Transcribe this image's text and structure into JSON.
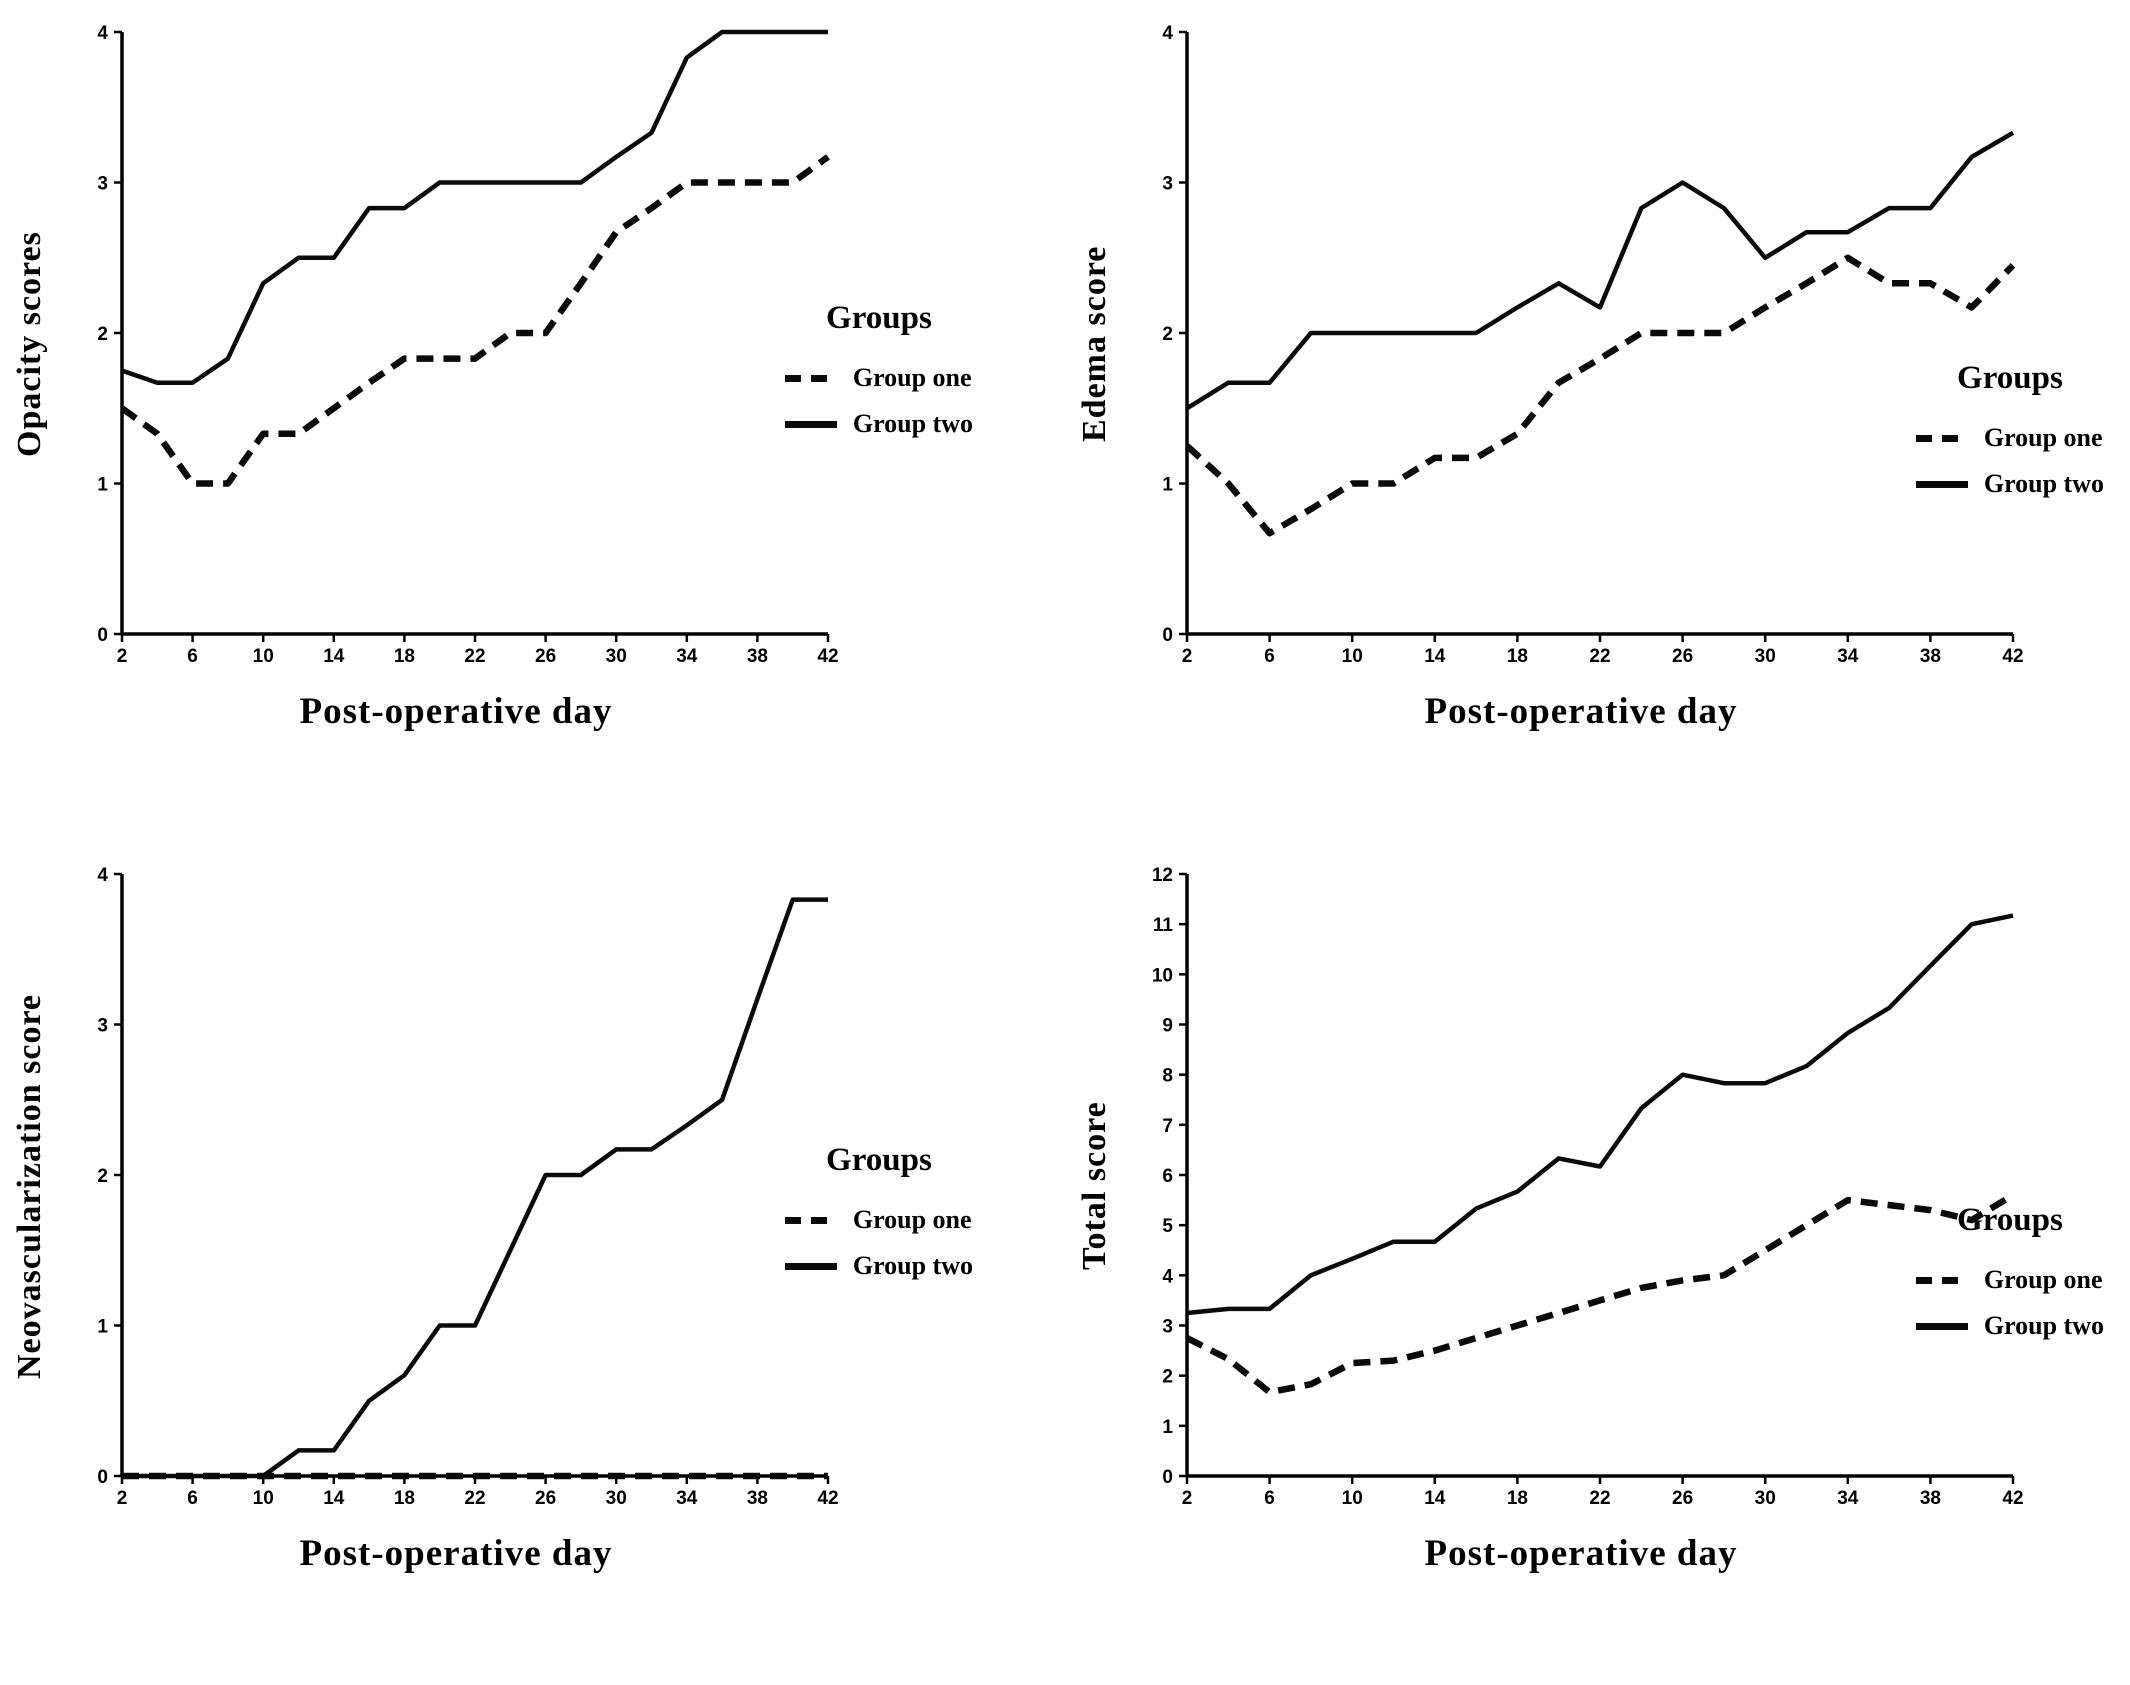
{
  "legend": {
    "title": "Groups"
  },
  "chart_data": [
    {
      "type": "line",
      "title": "",
      "ylabel": "Opacity scores",
      "xlabel": "Post-operative day",
      "legend_title": "Groups",
      "legend_position": "right-center",
      "grid": false,
      "xlim": [
        2,
        42
      ],
      "ylim": [
        0,
        4
      ],
      "xticks": [
        2,
        6,
        10,
        14,
        18,
        22,
        26,
        30,
        34,
        38,
        42
      ],
      "yticks": [
        0,
        1,
        2,
        3,
        4
      ],
      "x": [
        2,
        4,
        6,
        8,
        10,
        12,
        14,
        16,
        18,
        20,
        22,
        24,
        26,
        28,
        30,
        32,
        34,
        36,
        38,
        40,
        42
      ],
      "series": [
        {
          "name": "Group one",
          "style": "dashed",
          "values": [
            1.5,
            1.33,
            1.0,
            1.0,
            1.33,
            1.33,
            1.5,
            1.67,
            1.83,
            1.83,
            1.83,
            2.0,
            2.0,
            2.33,
            2.67,
            2.83,
            3.0,
            3.0,
            3.0,
            3.0,
            3.17
          ]
        },
        {
          "name": "Group two",
          "style": "solid",
          "values": [
            1.75,
            1.67,
            1.67,
            1.83,
            2.33,
            2.5,
            2.5,
            2.83,
            2.83,
            3.0,
            3.0,
            3.0,
            3.0,
            3.0,
            3.17,
            3.33,
            3.83,
            4.0,
            4.0,
            4.0,
            4.0
          ]
        }
      ]
    },
    {
      "type": "line",
      "title": "",
      "ylabel": "Edema score",
      "xlabel": "Post-operative day",
      "legend_title": "Groups",
      "legend_position": "right-center",
      "grid": false,
      "xlim": [
        2,
        42
      ],
      "ylim": [
        0,
        4
      ],
      "xticks": [
        2,
        6,
        10,
        14,
        18,
        22,
        26,
        30,
        34,
        38,
        42
      ],
      "yticks": [
        0,
        1,
        2,
        3,
        4
      ],
      "x": [
        2,
        4,
        6,
        8,
        10,
        12,
        14,
        16,
        18,
        20,
        22,
        24,
        26,
        28,
        30,
        32,
        34,
        36,
        38,
        40,
        42
      ],
      "series": [
        {
          "name": "Group one",
          "style": "dashed",
          "values": [
            1.25,
            1.0,
            0.67,
            0.83,
            1.0,
            1.0,
            1.17,
            1.17,
            1.33,
            1.67,
            1.83,
            2.0,
            2.0,
            2.0,
            2.17,
            2.33,
            2.5,
            2.33,
            2.33,
            2.17,
            2.45
          ]
        },
        {
          "name": "Group two",
          "style": "solid",
          "values": [
            1.5,
            1.67,
            1.67,
            2.0,
            2.0,
            2.0,
            2.0,
            2.0,
            2.17,
            2.33,
            2.17,
            2.83,
            3.0,
            2.83,
            2.5,
            2.67,
            2.67,
            2.83,
            2.83,
            3.17,
            3.33
          ]
        }
      ]
    },
    {
      "type": "line",
      "title": "",
      "ylabel": "Neovascularization score",
      "xlabel": "Post-operative day",
      "legend_title": "Groups",
      "legend_position": "right-center",
      "grid": false,
      "xlim": [
        2,
        42
      ],
      "ylim": [
        0,
        4
      ],
      "xticks": [
        2,
        6,
        10,
        14,
        18,
        22,
        26,
        30,
        34,
        38,
        42
      ],
      "yticks": [
        0,
        1,
        2,
        3,
        4
      ],
      "x": [
        2,
        4,
        6,
        8,
        10,
        12,
        14,
        16,
        18,
        20,
        22,
        24,
        26,
        28,
        30,
        32,
        34,
        36,
        38,
        40,
        42
      ],
      "series": [
        {
          "name": "Group one",
          "style": "dashed",
          "values": [
            0,
            0,
            0,
            0,
            0,
            0,
            0,
            0,
            0,
            0,
            0,
            0,
            0,
            0,
            0,
            0,
            0,
            0,
            0,
            0,
            0
          ]
        },
        {
          "name": "Group two",
          "style": "solid",
          "values": [
            0,
            0,
            0,
            0,
            0,
            0.17,
            0.17,
            0.5,
            0.67,
            1.0,
            1.0,
            1.5,
            2.0,
            2.0,
            2.17,
            2.17,
            2.33,
            2.5,
            3.17,
            3.83,
            3.83
          ]
        }
      ]
    },
    {
      "type": "line",
      "title": "",
      "ylabel": "Total score",
      "xlabel": "Post-operative day",
      "legend_title": "Groups",
      "legend_position": "right-center",
      "grid": false,
      "xlim": [
        2,
        42
      ],
      "ylim": [
        0,
        12
      ],
      "xticks": [
        2,
        6,
        10,
        14,
        18,
        22,
        26,
        30,
        34,
        38,
        42
      ],
      "yticks": [
        0,
        1,
        2,
        3,
        4,
        5,
        6,
        7,
        8,
        9,
        10,
        11,
        12
      ],
      "x": [
        2,
        4,
        6,
        8,
        10,
        12,
        14,
        16,
        18,
        20,
        22,
        24,
        26,
        28,
        30,
        32,
        34,
        36,
        38,
        40,
        42
      ],
      "series": [
        {
          "name": "Group one",
          "style": "dashed",
          "values": [
            2.75,
            2.33,
            1.67,
            1.83,
            2.25,
            2.3,
            2.5,
            2.75,
            3.0,
            3.25,
            3.5,
            3.75,
            3.9,
            4.0,
            4.5,
            5.0,
            5.5,
            5.4,
            5.3,
            5.1,
            5.6
          ]
        },
        {
          "name": "Group two",
          "style": "solid",
          "values": [
            3.25,
            3.33,
            3.33,
            4.0,
            4.33,
            4.67,
            4.67,
            5.33,
            5.67,
            6.33,
            6.17,
            7.33,
            8.0,
            7.83,
            7.83,
            8.17,
            8.83,
            9.33,
            10.17,
            11.0,
            11.17
          ]
        }
      ]
    }
  ]
}
